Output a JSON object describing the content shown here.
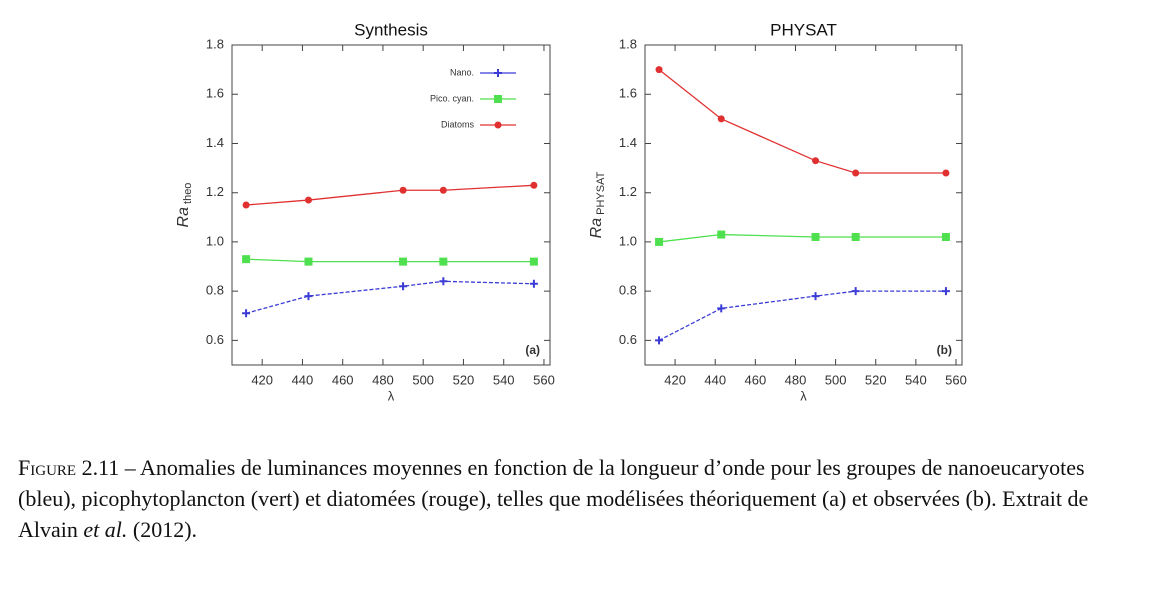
{
  "chart_data": [
    {
      "type": "line",
      "title": "Synthesis",
      "xlabel": "λ",
      "ylabel": "Ra",
      "ylabel_sub": "theo",
      "panel": "(a)",
      "x": [
        412,
        443,
        490,
        510,
        555
      ],
      "xlim": [
        405,
        563
      ],
      "xticks": [
        420,
        440,
        460,
        480,
        500,
        520,
        540,
        560
      ],
      "ylim": [
        0.5,
        1.8
      ],
      "yticks": [
        0.6,
        0.8,
        {
          "value": 1.0,
          "label": "1.0"
        },
        1.2,
        1.4,
        1.6,
        1.8
      ],
      "legend": "upper right",
      "series": [
        {
          "name": "Nano.",
          "color": "#3b3bd6",
          "marker": "plus",
          "values": [
            0.71,
            0.78,
            0.82,
            0.84,
            0.83
          ]
        },
        {
          "name": "Pico. cyan.",
          "color": "#4fe04f",
          "marker": "square",
          "values": [
            0.93,
            0.92,
            0.92,
            0.92,
            0.92
          ]
        },
        {
          "name": "Diatoms",
          "color": "#e03030",
          "marker": "circle",
          "values": [
            1.15,
            1.17,
            1.21,
            1.21,
            1.23
          ]
        }
      ]
    },
    {
      "type": "line",
      "title": "PHYSAT",
      "xlabel": "λ",
      "ylabel": "Ra",
      "ylabel_sub": "PHYSAT",
      "panel": "(b)",
      "x": [
        412,
        443,
        490,
        510,
        555
      ],
      "xlim": [
        405,
        563
      ],
      "xticks": [
        420,
        440,
        460,
        480,
        500,
        520,
        540,
        560
      ],
      "ylim": [
        0.5,
        1.8
      ],
      "yticks": [
        0.6,
        0.8,
        {
          "value": 1.0,
          "label": "1.0"
        },
        1.2,
        1.4,
        1.6,
        1.8
      ],
      "series": [
        {
          "color": "#3b3bd6",
          "marker": "plus",
          "values": [
            0.6,
            0.73,
            0.78,
            0.8,
            0.8
          ]
        },
        {
          "color": "#4fe04f",
          "marker": "square",
          "values": [
            1.0,
            1.03,
            1.02,
            1.02,
            1.02
          ]
        },
        {
          "color": "#e03030",
          "marker": "circle",
          "values": [
            1.7,
            1.5,
            1.33,
            1.28,
            1.28
          ]
        }
      ]
    }
  ],
  "caption": {
    "label": "Figure 2.11 –",
    "text": " Anomalies de luminances moyennes en fonction de la longueur d’onde pour les groupes de nanoeucaryotes (bleu), picophytoplancton (vert) et diatomées (rouge), telles que modélisées théoriquement (a) et observées (b). Extrait de Alvain ",
    "italic": "et al.",
    "end": " (2012)."
  }
}
